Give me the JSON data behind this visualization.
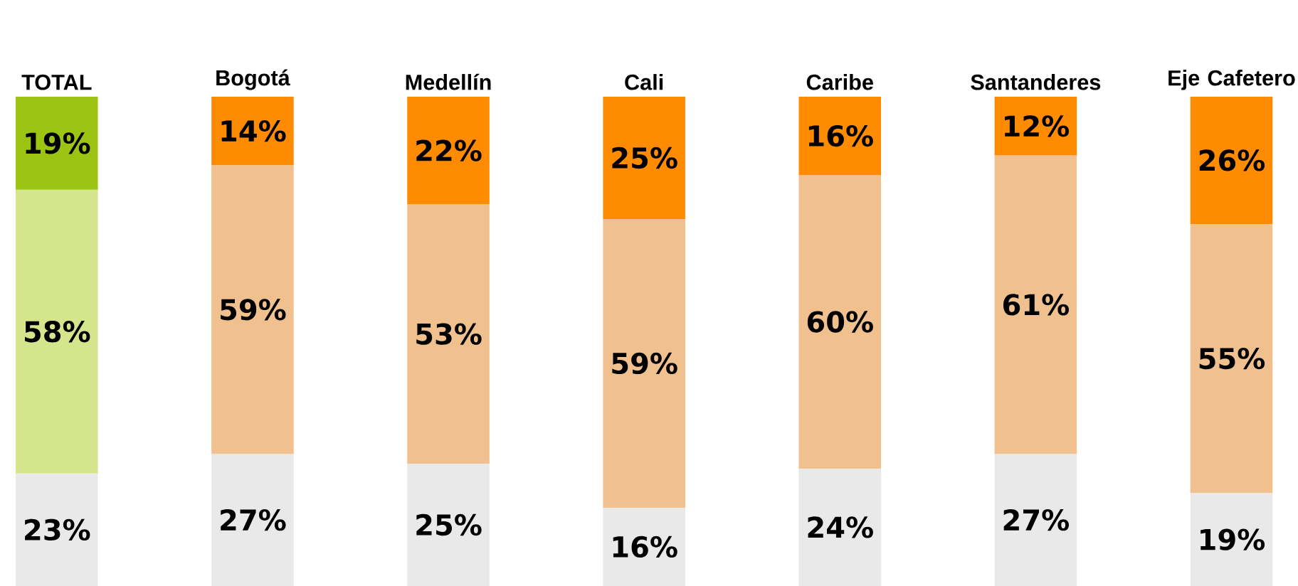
{
  "chart_data": {
    "type": "bar",
    "stacked": true,
    "categories": [
      "TOTAL",
      "Bogotá",
      "Medellín",
      "Cali",
      "Caribe",
      "Santanderes",
      "Eje Cafetero"
    ],
    "series": [
      {
        "colors": [
          "#e9e9e9",
          "#e9e9e9",
          "#e9e9e9",
          "#e9e9e9",
          "#e9e9e9",
          "#e9e9e9",
          "#e9e9e9"
        ],
        "values": [
          23,
          27,
          25,
          16,
          24,
          27,
          19
        ],
        "value_labels": [
          "23%",
          "27%",
          "25%",
          "16%",
          "24%",
          "27%",
          "19%"
        ]
      },
      {
        "colors": [
          "#d5e58c",
          "#f0c08e",
          "#f0c08e",
          "#f0c08e",
          "#f0c08e",
          "#f0c08e",
          "#f0c08e"
        ],
        "values": [
          58,
          59,
          53,
          59,
          60,
          61,
          55
        ],
        "value_labels": [
          "58%",
          "59%",
          "53%",
          "59%",
          "60%",
          "61%",
          "55%"
        ]
      },
      {
        "colors": [
          "#9cc412",
          "#ff8c00",
          "#ff8c00",
          "#ff8c00",
          "#ff8c00",
          "#ff8c00",
          "#ff8c00"
        ],
        "values": [
          19,
          14,
          22,
          25,
          16,
          12,
          26
        ],
        "value_labels": [
          "19%",
          "14%",
          "22%",
          "25%",
          "16%",
          "12%",
          "26%"
        ]
      }
    ]
  }
}
